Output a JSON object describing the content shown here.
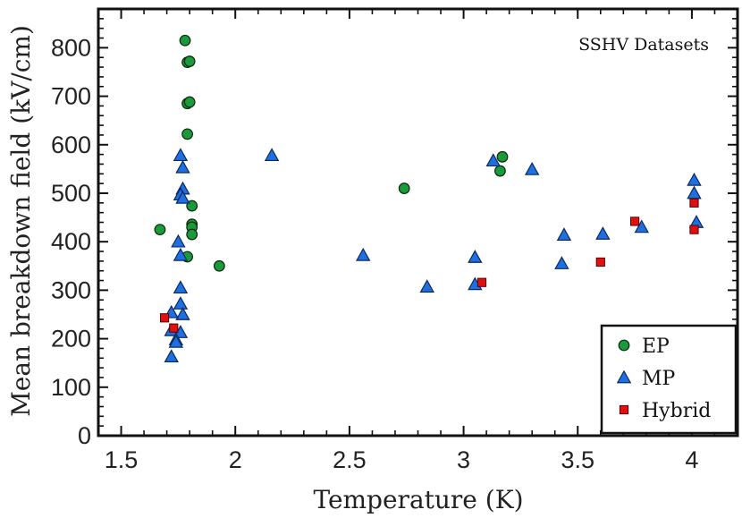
{
  "chart_data": {
    "type": "scatter",
    "title": "",
    "annotation": "SSHV Datasets",
    "xlabel": "Temperature (K)",
    "ylabel": "Mean breakdown field (kV/cm)",
    "xlim": [
      1.4,
      4.2
    ],
    "ylim": [
      0,
      880
    ],
    "xticks": [
      1.5,
      2,
      2.5,
      3,
      3.5,
      4
    ],
    "xtick_labels": [
      "1.5",
      "2",
      "2.5",
      "3",
      "3.5",
      "4"
    ],
    "yticks": [
      0,
      100,
      200,
      300,
      400,
      500,
      600,
      700,
      800
    ],
    "ytick_labels": [
      "0",
      "100",
      "200",
      "300",
      "400",
      "500",
      "600",
      "700",
      "800"
    ],
    "grid": false,
    "legend_position": "bottom-right",
    "series": [
      {
        "name": "EP",
        "marker": "circle",
        "color": "#1a9a3a",
        "points": [
          [
            1.78,
            815
          ],
          [
            1.79,
            770
          ],
          [
            1.8,
            772
          ],
          [
            1.79,
            685
          ],
          [
            1.8,
            688
          ],
          [
            1.79,
            622
          ],
          [
            1.81,
            474
          ],
          [
            1.81,
            436
          ],
          [
            1.81,
            430
          ],
          [
            1.81,
            415
          ],
          [
            1.67,
            425
          ],
          [
            1.79,
            369
          ],
          [
            1.93,
            350
          ],
          [
            2.74,
            510
          ],
          [
            3.16,
            546
          ],
          [
            3.17,
            575
          ]
        ]
      },
      {
        "name": "MP",
        "marker": "triangle",
        "color": "#1f6fe0",
        "points": [
          [
            1.76,
            578
          ],
          [
            1.77,
            553
          ],
          [
            1.77,
            509
          ],
          [
            1.76,
            497
          ],
          [
            1.77,
            490
          ],
          [
            1.75,
            400
          ],
          [
            1.76,
            372
          ],
          [
            1.76,
            305
          ],
          [
            1.76,
            272
          ],
          [
            1.77,
            250
          ],
          [
            1.72,
            254
          ],
          [
            1.72,
            217
          ],
          [
            1.76,
            213
          ],
          [
            1.74,
            198
          ],
          [
            1.74,
            193
          ],
          [
            1.72,
            163
          ],
          [
            2.16,
            578
          ],
          [
            2.56,
            372
          ],
          [
            2.84,
            307
          ],
          [
            3.05,
            368
          ],
          [
            3.05,
            312
          ],
          [
            3.13,
            567
          ],
          [
            3.3,
            549
          ],
          [
            3.43,
            355
          ],
          [
            3.44,
            414
          ],
          [
            3.61,
            416
          ],
          [
            3.78,
            430
          ],
          [
            4.01,
            527
          ],
          [
            4.01,
            500
          ],
          [
            4.02,
            440
          ]
        ]
      },
      {
        "name": "Hybrid",
        "marker": "square",
        "color": "#e01010",
        "points": [
          [
            1.69,
            243
          ],
          [
            1.73,
            222
          ],
          [
            3.08,
            316
          ],
          [
            3.6,
            358
          ],
          [
            3.75,
            442
          ],
          [
            4.01,
            480
          ],
          [
            4.01,
            425
          ]
        ]
      }
    ]
  }
}
